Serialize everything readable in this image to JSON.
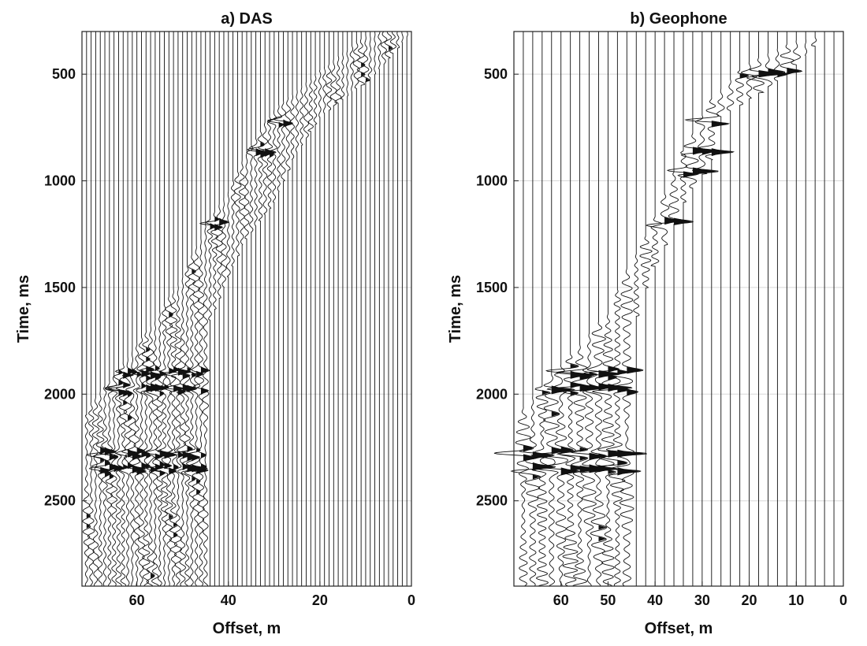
{
  "chart_data": [
    {
      "type": "seismic-wiggle",
      "title": "a) DAS",
      "xlabel": "Offset, m",
      "ylabel": "Time, ms",
      "xlim": [
        72,
        0
      ],
      "ylim": [
        300,
        2900
      ],
      "x_reversed": true,
      "y_reversed": true,
      "xticks": [
        60,
        40,
        20,
        0
      ],
      "yticks": [
        500,
        1000,
        1500,
        2000,
        2500
      ],
      "grid": true,
      "trace_offsets_m": {
        "from": 1,
        "to": 71,
        "step": 1
      },
      "first_arrival_ms": [
        [
          2,
          300
        ],
        [
          10,
          350
        ],
        [
          20,
          520
        ],
        [
          30,
          700
        ],
        [
          36,
          900
        ],
        [
          40,
          1080
        ],
        [
          45,
          1250
        ],
        [
          50,
          1480
        ],
        [
          55,
          1650
        ],
        [
          60,
          1800
        ],
        [
          65,
          1950
        ],
        [
          71,
          2100
        ]
      ],
      "signal_window": {
        "offset_max_m": [
          [
            300,
            0
          ],
          [
            500,
            8
          ],
          [
            700,
            20
          ],
          [
            900,
            26
          ],
          [
            1100,
            30
          ],
          [
            1300,
            37
          ],
          [
            1500,
            41
          ],
          [
            1700,
            45
          ],
          [
            2900,
            45
          ]
        ],
        "offset_min_m": [
          [
            300,
            30
          ],
          [
            500,
            32
          ],
          [
            700,
            36
          ],
          [
            900,
            39
          ],
          [
            1100,
            44
          ],
          [
            1300,
            50
          ],
          [
            1500,
            55
          ],
          [
            1700,
            62
          ],
          [
            1900,
            68
          ],
          [
            2100,
            71
          ],
          [
            2900,
            71
          ]
        ]
      },
      "strong_events": [
        {
          "time_ms": 400,
          "offset_range_m": [
            16,
            34
          ]
        },
        {
          "time_ms": 480,
          "offset_range_m": [
            20,
            32
          ]
        },
        {
          "time_ms": 720,
          "offset_range_m": [
            28,
            40
          ]
        },
        {
          "time_ms": 860,
          "offset_range_m": [
            30,
            40
          ]
        },
        {
          "time_ms": 1200,
          "offset_range_m": [
            42,
            50
          ]
        },
        {
          "time_ms": 1900,
          "offset_range_m": [
            46,
            66
          ]
        },
        {
          "time_ms": 1975,
          "offset_range_m": [
            46,
            67
          ]
        },
        {
          "time_ms": 2280,
          "offset_range_m": [
            46,
            68
          ]
        },
        {
          "time_ms": 2350,
          "offset_range_m": [
            46,
            68
          ]
        }
      ]
    },
    {
      "type": "seismic-wiggle",
      "title": "b) Geophone",
      "xlabel": "Offset, m",
      "ylabel": "Time, ms",
      "xlim": [
        70,
        0
      ],
      "ylim": [
        300,
        2900
      ],
      "x_reversed": true,
      "y_reversed": true,
      "xticks": [
        60,
        50,
        40,
        30,
        20,
        10,
        0
      ],
      "yticks": [
        500,
        1000,
        1500,
        2000,
        2500
      ],
      "grid": true,
      "trace_offsets_m": {
        "from": 2,
        "to": 70,
        "step": 2
      },
      "first_arrival_ms": [
        [
          3,
          360
        ],
        [
          10,
          380
        ],
        [
          20,
          480
        ],
        [
          28,
          650
        ],
        [
          34,
          900
        ],
        [
          38,
          1100
        ],
        [
          42,
          1300
        ],
        [
          46,
          1450
        ],
        [
          50,
          1650
        ],
        [
          55,
          1780
        ],
        [
          60,
          1900
        ],
        [
          70,
          2150
        ]
      ],
      "signal_window": {
        "offset_max_m": [
          [
            300,
            3
          ],
          [
            500,
            12
          ],
          [
            700,
            26
          ],
          [
            900,
            28
          ],
          [
            1100,
            34
          ],
          [
            1300,
            38
          ],
          [
            1500,
            42
          ],
          [
            1700,
            45
          ],
          [
            2900,
            45
          ]
        ],
        "offset_min_m": [
          [
            300,
            28
          ],
          [
            500,
            30
          ],
          [
            700,
            34
          ],
          [
            900,
            37
          ],
          [
            1100,
            42
          ],
          [
            1300,
            46
          ],
          [
            1500,
            52
          ],
          [
            1700,
            57
          ],
          [
            1900,
            64
          ],
          [
            2100,
            69
          ],
          [
            2900,
            70
          ]
        ]
      },
      "strong_events": [
        {
          "time_ms": 500,
          "offset_range_m": [
            12,
            30
          ]
        },
        {
          "time_ms": 720,
          "offset_range_m": [
            26,
            36
          ]
        },
        {
          "time_ms": 860,
          "offset_range_m": [
            28,
            38
          ]
        },
        {
          "time_ms": 960,
          "offset_range_m": [
            30,
            38
          ]
        },
        {
          "time_ms": 1200,
          "offset_range_m": [
            36,
            42
          ]
        },
        {
          "time_ms": 1900,
          "offset_range_m": [
            46,
            62
          ]
        },
        {
          "time_ms": 1975,
          "offset_range_m": [
            46,
            66
          ]
        },
        {
          "time_ms": 2280,
          "offset_range_m": [
            46,
            68
          ]
        },
        {
          "time_ms": 2350,
          "offset_range_m": [
            46,
            66
          ]
        }
      ]
    }
  ]
}
